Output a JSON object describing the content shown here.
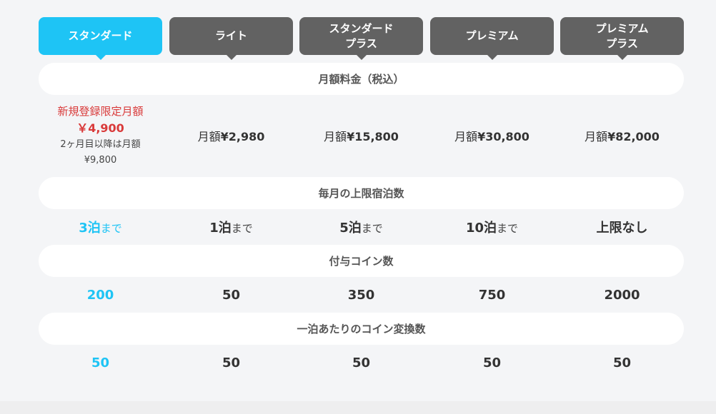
{
  "tabs": [
    {
      "label": "スタンダード",
      "active": true
    },
    {
      "label": "ライト",
      "active": false
    },
    {
      "label": "スタンダード\nプラス",
      "active": false
    },
    {
      "label": "プレミアム",
      "active": false
    },
    {
      "label": "プレミアム\nプラス",
      "active": false
    }
  ],
  "sections": {
    "price": "月額料金（税込）",
    "nights": "毎月の上限宿泊数",
    "coins": "付与コイン数",
    "conversion": "一泊あたりのコイン変換数"
  },
  "prices": {
    "standard": {
      "promo_label": "新規登録限定月額",
      "promo_price": "￥4,900",
      "after_label": "2ヶ月目以降は月額",
      "after_price": "¥9,800"
    },
    "prefix": "月額",
    "light": "¥2,980",
    "standard_plus": "¥15,800",
    "premium": "¥30,800",
    "premium_plus": "¥82,000"
  },
  "nights": {
    "suffix": "まで",
    "standard": "3泊",
    "light": "1泊",
    "standard_plus": "5泊",
    "premium": "10泊",
    "premium_plus": "上限なし"
  },
  "coins": {
    "standard": "200",
    "light": "50",
    "standard_plus": "350",
    "premium": "750",
    "premium_plus": "2000"
  },
  "conversion": {
    "standard": "50",
    "light": "50",
    "standard_plus": "50",
    "premium": "50",
    "premium_plus": "50"
  },
  "colors": {
    "accent": "#1ec4f5",
    "tab_inactive": "#626262",
    "promo_red": "#d93a3a",
    "background": "#f4f5f7"
  }
}
